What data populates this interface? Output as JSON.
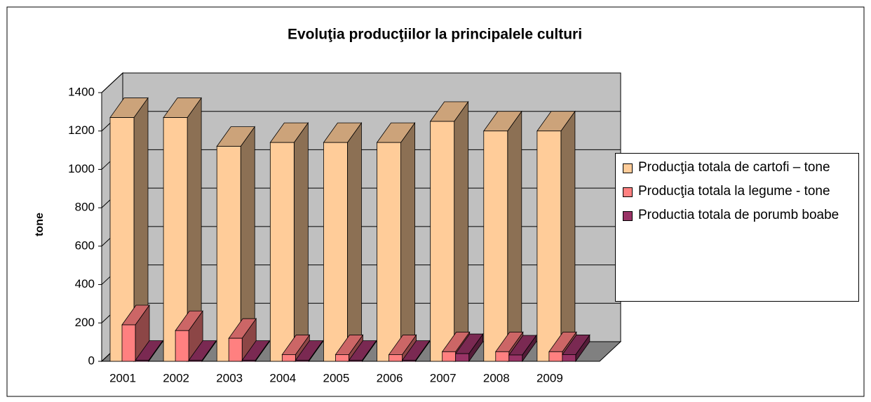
{
  "chart_data": {
    "type": "bar3d",
    "title": "Evoluţia producţiilor la principalele culturi",
    "y_label": "tone",
    "categories": [
      "2001",
      "2002",
      "2003",
      "2004",
      "2005",
      "2006",
      "2007",
      "2008",
      "2009"
    ],
    "series": [
      {
        "name": "Producţia totala de cartofi – tone",
        "color": "#FFCC99",
        "values": [
          1270,
          1270,
          1120,
          1140,
          1140,
          1140,
          1250,
          1200,
          1200
        ]
      },
      {
        "name": "Producţia totala la legume - tone",
        "color": "#FF8080",
        "values": [
          190,
          160,
          120,
          35,
          35,
          35,
          50,
          50,
          50
        ]
      },
      {
        "name": "Productia totala de porumb boabe",
        "color": "#993366",
        "values": [
          5,
          5,
          5,
          5,
          5,
          5,
          40,
          33,
          35
        ]
      }
    ],
    "ylim": [
      0,
      1400
    ],
    "yticks": [
      0,
      200,
      400,
      600,
      800,
      1000,
      1200,
      1400
    ],
    "grid": true,
    "legend": "right"
  }
}
